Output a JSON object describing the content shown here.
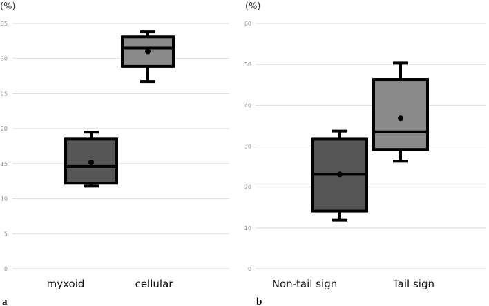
{
  "chart_data": [
    {
      "panel_label": "a",
      "type": "box",
      "unit_label": "(%)",
      "ylim": [
        0,
        35
      ],
      "yticks": [
        0,
        5,
        10,
        15,
        20,
        25,
        30,
        35
      ],
      "ytick_labels": [
        "0",
        "5",
        "10",
        "15",
        "20",
        "25",
        "30",
        "35"
      ],
      "grid": true,
      "categories": [
        "myxoid",
        "cellular"
      ],
      "boxes": [
        {
          "name": "myxoid",
          "min": 11.8,
          "q1": 12.2,
          "median": 14.6,
          "q3": 18.5,
          "max": 19.5,
          "mean": 15.2,
          "color": "#555555"
        },
        {
          "name": "cellular",
          "min": 26.7,
          "q1": 28.9,
          "median": 31.5,
          "q3": 33.1,
          "max": 33.8,
          "mean": 31.0,
          "color": "#8a8a8a"
        }
      ]
    },
    {
      "panel_label": "b",
      "type": "box",
      "unit_label": "(%)",
      "ylim": [
        0,
        60
      ],
      "yticks": [
        0,
        10,
        20,
        30,
        40,
        50,
        60
      ],
      "ytick_labels": [
        "0",
        "10",
        "20",
        "30",
        "40",
        "50",
        "60"
      ],
      "grid": true,
      "categories": [
        "Non-tail sign",
        "Tail sign"
      ],
      "boxes": [
        {
          "name": "Non-tail sign",
          "min": 11.9,
          "q1": 14.1,
          "median": 23.1,
          "q3": 31.7,
          "max": 33.7,
          "mean": 23.1,
          "color": "#555555"
        },
        {
          "name": "Tail sign",
          "min": 26.3,
          "q1": 29.2,
          "median": 33.5,
          "q3": 46.3,
          "max": 50.3,
          "mean": 36.8,
          "color": "#8a8a8a"
        }
      ]
    }
  ],
  "colors": {
    "grid": "#d9d9d9",
    "outline": "#000000",
    "mean_dot": "#000000"
  }
}
